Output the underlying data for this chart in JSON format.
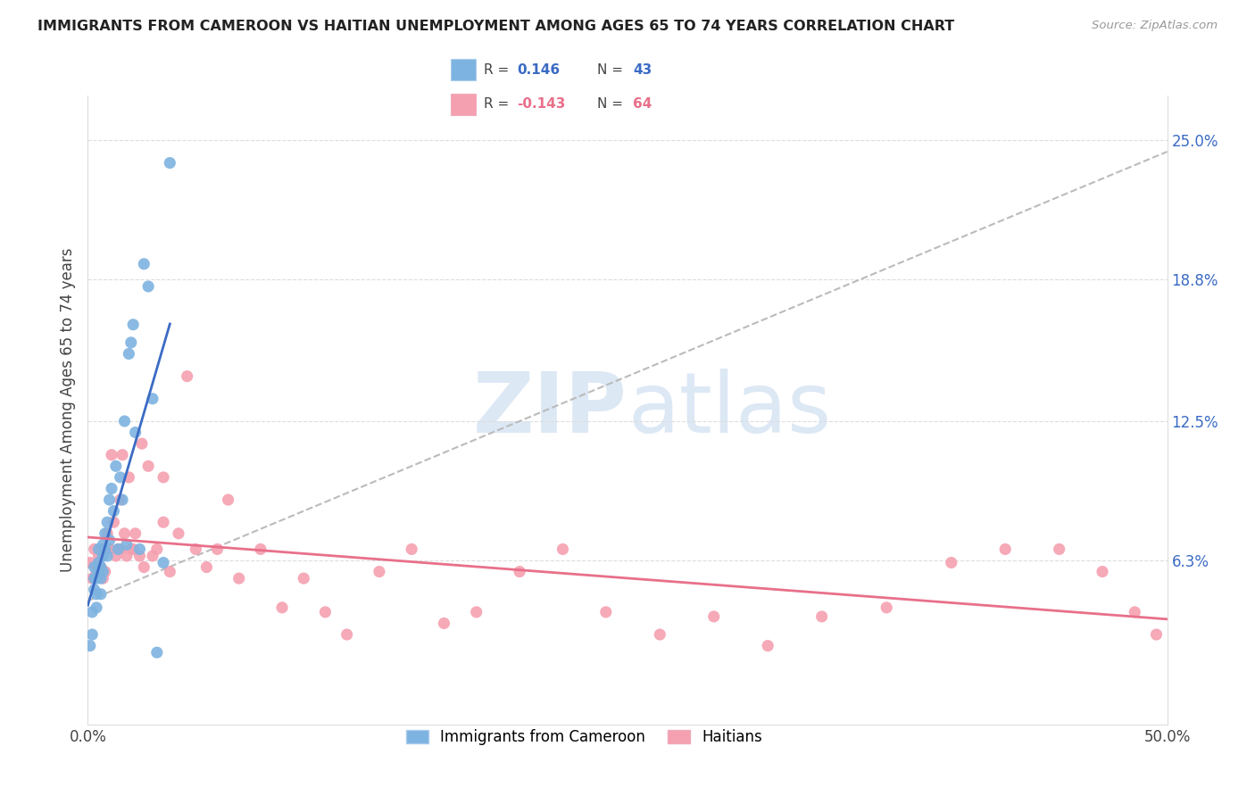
{
  "title": "IMMIGRANTS FROM CAMEROON VS HAITIAN UNEMPLOYMENT AMONG AGES 65 TO 74 YEARS CORRELATION CHART",
  "source": "Source: ZipAtlas.com",
  "ylabel": "Unemployment Among Ages 65 to 74 years",
  "xlim": [
    0.0,
    0.5
  ],
  "ylim": [
    -0.01,
    0.27
  ],
  "xtick_positions": [
    0.0,
    0.1,
    0.2,
    0.3,
    0.4,
    0.5
  ],
  "xticklabels": [
    "0.0%",
    "",
    "",
    "",
    "",
    "50.0%"
  ],
  "right_ytick_positions": [
    0.063,
    0.125,
    0.188,
    0.25
  ],
  "right_yticklabels": [
    "6.3%",
    "12.5%",
    "18.8%",
    "25.0%"
  ],
  "cameroon_R": 0.146,
  "cameroon_N": 43,
  "haitian_R": -0.143,
  "haitian_N": 64,
  "blue_dot_color": "#7DB3E0",
  "pink_dot_color": "#F5A0B0",
  "blue_line_color": "#3B6BC4",
  "pink_line_color": "#E8708A",
  "dashed_line_color": "#BBBBBB",
  "watermark_color": "#DDE8F5",
  "legend_label_1": "Immigrants from Cameroon",
  "legend_label_2": "Haitians",
  "cameroon_x": [
    0.001,
    0.002,
    0.002,
    0.003,
    0.003,
    0.003,
    0.004,
    0.004,
    0.004,
    0.005,
    0.005,
    0.005,
    0.006,
    0.006,
    0.006,
    0.007,
    0.007,
    0.007,
    0.008,
    0.008,
    0.009,
    0.009,
    0.01,
    0.01,
    0.011,
    0.012,
    0.013,
    0.014,
    0.015,
    0.016,
    0.017,
    0.018,
    0.019,
    0.02,
    0.021,
    0.022,
    0.024,
    0.026,
    0.028,
    0.03,
    0.032,
    0.035,
    0.038
  ],
  "cameroon_y": [
    0.025,
    0.04,
    0.03,
    0.05,
    0.055,
    0.06,
    0.048,
    0.055,
    0.042,
    0.058,
    0.062,
    0.068,
    0.06,
    0.055,
    0.048,
    0.065,
    0.07,
    0.058,
    0.075,
    0.068,
    0.08,
    0.065,
    0.09,
    0.072,
    0.095,
    0.085,
    0.105,
    0.068,
    0.1,
    0.09,
    0.125,
    0.07,
    0.155,
    0.16,
    0.168,
    0.12,
    0.068,
    0.195,
    0.185,
    0.135,
    0.022,
    0.062,
    0.24
  ],
  "haitian_x": [
    0.001,
    0.002,
    0.003,
    0.004,
    0.005,
    0.006,
    0.007,
    0.007,
    0.008,
    0.009,
    0.01,
    0.011,
    0.012,
    0.013,
    0.014,
    0.015,
    0.016,
    0.017,
    0.018,
    0.019,
    0.02,
    0.021,
    0.022,
    0.024,
    0.026,
    0.028,
    0.03,
    0.032,
    0.035,
    0.038,
    0.042,
    0.046,
    0.05,
    0.055,
    0.06,
    0.065,
    0.07,
    0.08,
    0.09,
    0.1,
    0.11,
    0.12,
    0.135,
    0.15,
    0.165,
    0.18,
    0.2,
    0.22,
    0.24,
    0.265,
    0.29,
    0.315,
    0.34,
    0.37,
    0.4,
    0.425,
    0.45,
    0.47,
    0.485,
    0.495,
    0.01,
    0.015,
    0.025,
    0.035
  ],
  "haitian_y": [
    0.062,
    0.055,
    0.068,
    0.058,
    0.065,
    0.06,
    0.055,
    0.068,
    0.058,
    0.075,
    0.068,
    0.11,
    0.08,
    0.065,
    0.068,
    0.068,
    0.11,
    0.075,
    0.065,
    0.1,
    0.068,
    0.068,
    0.075,
    0.065,
    0.06,
    0.105,
    0.065,
    0.068,
    0.1,
    0.058,
    0.075,
    0.145,
    0.068,
    0.06,
    0.068,
    0.09,
    0.055,
    0.068,
    0.042,
    0.055,
    0.04,
    0.03,
    0.058,
    0.068,
    0.035,
    0.04,
    0.058,
    0.068,
    0.04,
    0.03,
    0.038,
    0.025,
    0.038,
    0.042,
    0.062,
    0.068,
    0.068,
    0.058,
    0.04,
    0.03,
    0.068,
    0.09,
    0.115,
    0.08
  ]
}
